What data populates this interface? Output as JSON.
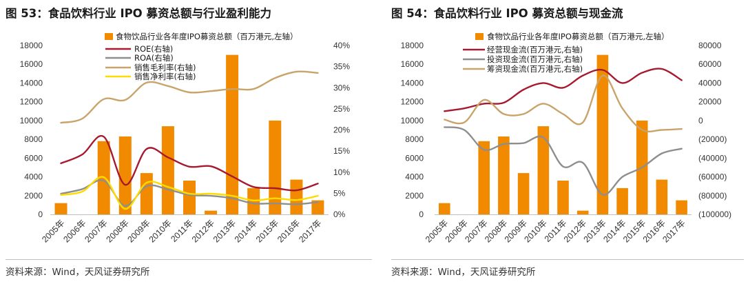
{
  "chart_data": [
    {
      "type": "bar",
      "title": "图 53：食品饮料行业 IPO 募资总额与行业盈利能力",
      "source": "资料来源：Wind，天风证券研究所",
      "categories": [
        "2005年",
        "2006年",
        "2007年",
        "2008年",
        "2009年",
        "2010年",
        "2011年",
        "2012年",
        "2013年",
        "2014年",
        "2015年",
        "2016年",
        "2017年"
      ],
      "ylim_left": [
        0,
        18000
      ],
      "ylim_right": [
        0,
        40
      ],
      "yticks_left": [
        "0",
        "2000",
        "4000",
        "6000",
        "8000",
        "10000",
        "12000",
        "14000",
        "16000",
        "18000"
      ],
      "yticks_right": [
        "0%",
        "5%",
        "10%",
        "15%",
        "20%",
        "25%",
        "30%",
        "35%",
        "40%"
      ],
      "grid": false,
      "legend": "top",
      "series": [
        {
          "name": "食物饮品行业各年度IPO募资总额（百万港元,左轴）",
          "type": "bar",
          "axis": "left",
          "color": "#F28A00",
          "values": [
            1200,
            0,
            7800,
            8300,
            4400,
            9400,
            3600,
            400,
            17000,
            2800,
            10000,
            3700,
            1500
          ]
        },
        {
          "name": "ROE(右轴)",
          "type": "line",
          "axis": "right",
          "color": "#A6192E",
          "values": [
            12.1,
            14.2,
            18.4,
            7.0,
            15.5,
            13.5,
            11.3,
            11.4,
            9.0,
            6.5,
            6.2,
            5.7,
            7.3
          ]
        },
        {
          "name": "ROA(右轴)",
          "type": "line",
          "axis": "right",
          "color": "#8E8E8E",
          "values": [
            4.9,
            6.0,
            8.0,
            2.0,
            6.7,
            5.9,
            4.6,
            4.4,
            3.8,
            2.6,
            2.6,
            2.4,
            2.9
          ]
        },
        {
          "name": "销售毛利率(右轴)",
          "type": "line",
          "axis": "right",
          "color": "#C8A46A",
          "values": [
            21.7,
            22.7,
            27.3,
            27.1,
            31.2,
            30.4,
            28.9,
            29.2,
            29.7,
            29.7,
            32.3,
            33.8,
            33.5
          ]
        },
        {
          "name": "销售净利率(右轴)",
          "type": "line",
          "axis": "right",
          "color": "#FFDC00",
          "values": [
            4.6,
            5.4,
            8.8,
            1.3,
            7.5,
            6.5,
            4.9,
            4.9,
            4.4,
            3.3,
            3.8,
            3.4,
            4.4
          ]
        }
      ]
    },
    {
      "type": "bar",
      "title": "图 54：食品饮料行业 IPO 募资总额与现金流",
      "source": "资料来源：Wind，天风证券研究所",
      "categories": [
        "2005年",
        "2006年",
        "2007年",
        "2008年",
        "2009年",
        "2010年",
        "2011年",
        "2012年",
        "2013年",
        "2014年",
        "2015年",
        "2016年",
        "2017年"
      ],
      "ylim_left": [
        0,
        18000
      ],
      "ylim_right": [
        -100000,
        80000
      ],
      "yticks_left": [
        "0",
        "2000",
        "4000",
        "6000",
        "8000",
        "10000",
        "12000",
        "14000",
        "16000",
        "18000"
      ],
      "yticks_right": [
        "(100000)",
        "(80000)",
        "(60000)",
        "(40000)",
        "(20000)",
        "0",
        "20000",
        "40000",
        "60000",
        "80000"
      ],
      "negative_tick_color": "#C0282D",
      "grid": false,
      "legend": "top",
      "series": [
        {
          "name": "食物饮品行业各年度IPO募资总额（百万港元,左轴）",
          "type": "bar",
          "axis": "left",
          "color": "#F28A00",
          "values": [
            1200,
            0,
            7800,
            8300,
            4400,
            9400,
            3600,
            400,
            17000,
            2800,
            10000,
            3700,
            1500
          ]
        },
        {
          "name": "经营现金流(百万港元,右轴)",
          "type": "line",
          "axis": "right",
          "color": "#A6192E",
          "values": [
            10000,
            13000,
            18000,
            19000,
            33000,
            40000,
            35000,
            48000,
            54000,
            40000,
            51000,
            55000,
            43000
          ]
        },
        {
          "name": "投资现金流(百万港元,右轴)",
          "type": "line",
          "axis": "right",
          "color": "#8E8E8E",
          "values": [
            -7000,
            -10000,
            -31000,
            -25000,
            -24000,
            -18000,
            -49000,
            -45000,
            -79000,
            -60000,
            -50000,
            -35000,
            -30000
          ]
        },
        {
          "name": "筹资现金流(百万港元,右轴)",
          "type": "line",
          "axis": "right",
          "color": "#C8A46A",
          "values": [
            1000,
            -2000,
            22000,
            7000,
            7000,
            18000,
            7000,
            -2000,
            48000,
            13000,
            -10000,
            -10000,
            -9000
          ]
        }
      ]
    }
  ]
}
